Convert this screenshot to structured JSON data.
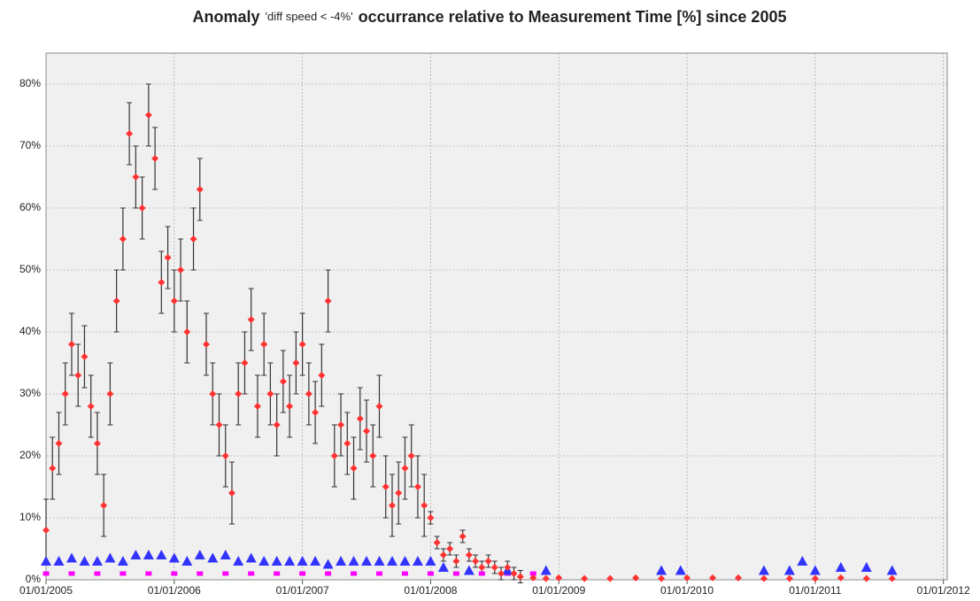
{
  "chart_data": {
    "type": "scatter",
    "title": [
      "Anomaly",
      "'diff speed < -4%'",
      "occurrance relative to Measurement Time [%] since 2005"
    ],
    "xlim": [
      2005,
      2012.03
    ],
    "ylim": [
      0,
      85
    ],
    "grid": true,
    "background": "#f0f0f0",
    "error_color": "#333333",
    "xticks": [
      {
        "value": 2005,
        "label": "01/01/2005"
      },
      {
        "value": 2006,
        "label": "01/01/2006"
      },
      {
        "value": 2007,
        "label": "01/01/2007"
      },
      {
        "value": 2008,
        "label": "01/01/2008"
      },
      {
        "value": 2009,
        "label": "01/01/2009"
      },
      {
        "value": 2010,
        "label": "01/01/2010"
      },
      {
        "value": 2011,
        "label": "01/01/2011"
      },
      {
        "value": 2012,
        "label": "01/01/2012"
      }
    ],
    "yticks": [
      {
        "value": 0,
        "label": "0%"
      },
      {
        "value": 10,
        "label": "10%"
      },
      {
        "value": 20,
        "label": "20%"
      },
      {
        "value": 30,
        "label": "30%"
      },
      {
        "value": 40,
        "label": "40%"
      },
      {
        "value": 50,
        "label": "50%"
      },
      {
        "value": 60,
        "label": "60%"
      },
      {
        "value": 70,
        "label": "70%"
      },
      {
        "value": 80,
        "label": "80%"
      }
    ],
    "series": [
      {
        "color": "#ff00ff",
        "marker": "square",
        "x": [
          2005.0,
          2005.2,
          2005.4,
          2005.6,
          2005.8,
          2006.0,
          2006.2,
          2006.4,
          2006.6,
          2006.8,
          2007.0,
          2007.2,
          2007.4,
          2007.6,
          2007.8,
          2008.0,
          2008.2,
          2008.4,
          2008.6,
          2008.8
        ],
        "values": [
          1,
          1,
          1,
          1,
          1,
          1,
          1,
          1,
          1,
          1,
          1,
          1,
          1,
          1,
          1,
          1,
          1,
          1,
          1,
          1
        ]
      },
      {
        "color": "#3333ff",
        "marker": "triangle",
        "x": [
          2005.0,
          2005.1,
          2005.2,
          2005.3,
          2005.4,
          2005.5,
          2005.6,
          2005.7,
          2005.8,
          2005.9,
          2006.0,
          2006.1,
          2006.2,
          2006.3,
          2006.4,
          2006.5,
          2006.6,
          2006.7,
          2006.8,
          2006.9,
          2007.0,
          2007.1,
          2007.2,
          2007.3,
          2007.4,
          2007.5,
          2007.6,
          2007.7,
          2007.8,
          2007.9,
          2008.0,
          2008.1,
          2008.3,
          2008.6,
          2008.9,
          2009.8,
          2009.95,
          2010.6,
          2010.8,
          2010.9,
          2011.0,
          2011.2,
          2011.4,
          2011.6
        ],
        "values": [
          3,
          3,
          3.5,
          3,
          3,
          3.5,
          3,
          4,
          4,
          4,
          3.5,
          3,
          4,
          3.5,
          4,
          3,
          3.5,
          3,
          3,
          3,
          3,
          3,
          2.5,
          3,
          3,
          3,
          3,
          3,
          3,
          3,
          3,
          2,
          1.5,
          1.5,
          1.5,
          1.5,
          1.5,
          1.5,
          1.5,
          3,
          1.5,
          2,
          2,
          1.5
        ]
      },
      {
        "color": "#ff3333",
        "marker": "diamond",
        "x": [
          2005.0,
          2005.05,
          2005.1,
          2005.15,
          2005.2,
          2005.25,
          2005.3,
          2005.35,
          2005.4,
          2005.45,
          2005.5,
          2005.55,
          2005.6,
          2005.65,
          2005.7,
          2005.75,
          2005.8,
          2005.85,
          2005.9,
          2005.95,
          2006.0,
          2006.05,
          2006.1,
          2006.15,
          2006.2,
          2006.25,
          2006.3,
          2006.35,
          2006.4,
          2006.45,
          2006.5,
          2006.55,
          2006.6,
          2006.65,
          2006.7,
          2006.75,
          2006.8,
          2006.85,
          2006.9,
          2006.95,
          2007.0,
          2007.05,
          2007.1,
          2007.15,
          2007.2,
          2007.25,
          2007.3,
          2007.35,
          2007.4,
          2007.45,
          2007.5,
          2007.55,
          2007.6,
          2007.65,
          2007.7,
          2007.75,
          2007.8,
          2007.85,
          2007.9,
          2007.95,
          2008.0,
          2008.05,
          2008.1,
          2008.15,
          2008.2,
          2008.25,
          2008.3,
          2008.35,
          2008.4,
          2008.45,
          2008.5,
          2008.55,
          2008.6,
          2008.65,
          2008.7
        ],
        "values": [
          8,
          18,
          22,
          30,
          38,
          33,
          36,
          28,
          22,
          12,
          30,
          45,
          55,
          72,
          65,
          60,
          75,
          68,
          48,
          52,
          45,
          50,
          40,
          55,
          63,
          38,
          30,
          25,
          20,
          14,
          30,
          35,
          42,
          28,
          38,
          30,
          25,
          32,
          28,
          35,
          38,
          30,
          27,
          33,
          45,
          20,
          25,
          22,
          18,
          26,
          24,
          20,
          28,
          15,
          12,
          14,
          18,
          20,
          15,
          12,
          10,
          6,
          4,
          5,
          3,
          7,
          4,
          3,
          2,
          3,
          2,
          1,
          2,
          1,
          0.5
        ],
        "errors": [
          5,
          5,
          5,
          5,
          5,
          5,
          5,
          5,
          5,
          5,
          5,
          5,
          5,
          5,
          5,
          5,
          5,
          5,
          5,
          5,
          5,
          5,
          5,
          5,
          5,
          5,
          5,
          5,
          5,
          5,
          5,
          5,
          5,
          5,
          5,
          5,
          5,
          5,
          5,
          5,
          5,
          5,
          5,
          5,
          5,
          5,
          5,
          5,
          5,
          5,
          5,
          5,
          5,
          5,
          5,
          5,
          5,
          5,
          5,
          5,
          1,
          1,
          1,
          1,
          1,
          1,
          1,
          1,
          1,
          1,
          1,
          1,
          1,
          1,
          1
        ]
      },
      {
        "color": "#ff3333",
        "marker": "diamond",
        "x": [
          2008.8,
          2008.9,
          2009.0,
          2009.2,
          2009.4,
          2009.6,
          2009.8,
          2010.0,
          2010.2,
          2010.4,
          2010.6,
          2010.8,
          2011.0,
          2011.2,
          2011.4,
          2011.6
        ],
        "values": [
          0.3,
          0.2,
          0.3,
          0.2,
          0.2,
          0.3,
          0.2,
          0.3,
          0.3,
          0.3,
          0.2,
          0.2,
          0.2,
          0.3,
          0.2,
          0.2
        ]
      }
    ]
  }
}
